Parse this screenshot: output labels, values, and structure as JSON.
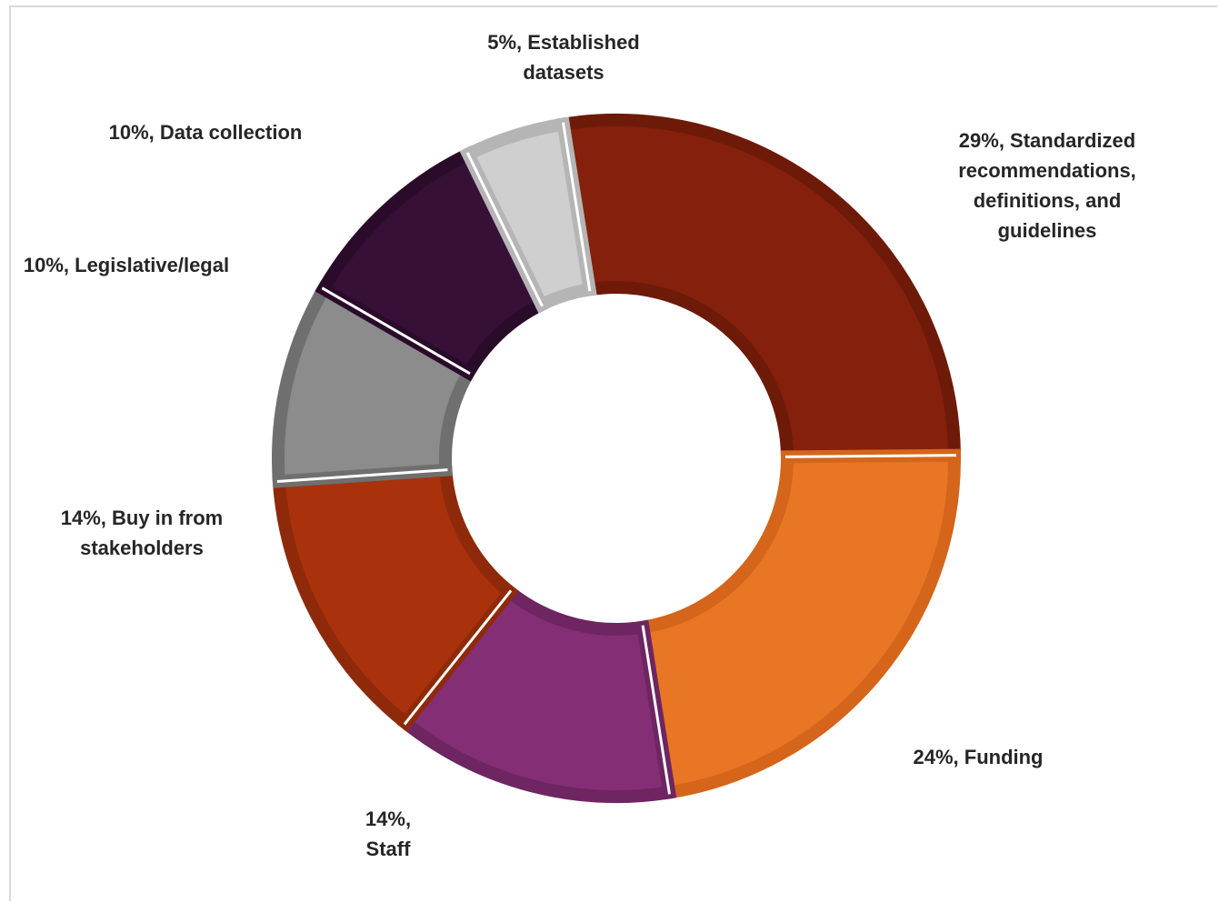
{
  "chart_data": {
    "type": "pie",
    "variant": "donut",
    "title": "",
    "slices": [
      {
        "label": "Standardized recommendations, definitions, and guidelines",
        "value": 29,
        "display": [
          "29%, Standardized",
          "recommendations,",
          "definitions, and",
          "guidelines"
        ],
        "fill": "#85200C",
        "edge": "#6E1A09"
      },
      {
        "label": "Funding",
        "value": 24,
        "display": [
          "24%, Funding"
        ],
        "fill": "#E97624",
        "edge": "#D4651A"
      },
      {
        "label": "Staff",
        "value": 14,
        "display": [
          "14%,",
          "Staff"
        ],
        "fill": "#842F75",
        "edge": "#6E2561"
      },
      {
        "label": "Buy in from stakeholders",
        "value": 14,
        "display": [
          "14%, Buy in from",
          "stakeholders"
        ],
        "fill": "#A9320C",
        "edge": "#8E2A0A"
      },
      {
        "label": "Legislative/legal",
        "value": 10,
        "display": [
          "10%, Legislative/legal"
        ],
        "fill": "#8C8C8C",
        "edge": "#6F6F6F"
      },
      {
        "label": "Data collection",
        "value": 10,
        "display": [
          "10%, Data collection"
        ],
        "fill": "#371037",
        "edge": "#2A0C2A"
      },
      {
        "label": "Established datasets",
        "value": 5,
        "display": [
          "5%, Established",
          "datasets"
        ],
        "fill": "#CFCFCF",
        "edge": "#B5B5B5"
      }
    ],
    "legend": "none"
  }
}
